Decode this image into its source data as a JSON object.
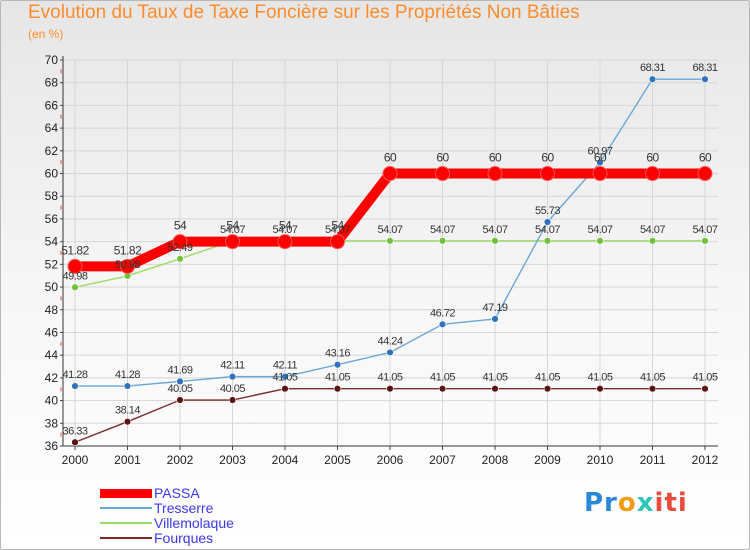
{
  "title": "Evolution du Taux de Taxe Foncière sur les Propriétés Non Bâties",
  "unit_label": "(en %)",
  "logo": {
    "text": "Proxiti",
    "parts": [
      "Pr",
      "o",
      "x",
      "iti"
    ]
  },
  "chart_data": {
    "type": "line",
    "title": "Evolution du Taux de Taxe Foncière sur les Propriétés Non Bâties",
    "ylabel": "(en %)",
    "xlabel": "",
    "ylim": [
      36,
      70
    ],
    "ytick_step": 2,
    "x": [
      "2000",
      "2001",
      "2002",
      "2003",
      "2004",
      "2005",
      "2006",
      "2007",
      "2008",
      "2009",
      "2010",
      "2011",
      "2012"
    ],
    "grid": true,
    "legend": "bottom-left",
    "series": [
      {
        "name": "PASSA",
        "color": "#ff0000",
        "emphasis": true,
        "values": [
          51.82,
          51.82,
          54,
          54,
          54,
          54,
          60,
          60,
          60,
          60,
          60,
          60,
          60
        ],
        "labels": [
          "51.82",
          "51.82",
          "54",
          "54",
          "54",
          "54",
          "60",
          "60",
          "60",
          "60",
          "60",
          "60",
          "60"
        ]
      },
      {
        "name": "Tresserre",
        "color": "#6aa6d8",
        "marker": "#2f73b8",
        "values": [
          41.28,
          41.28,
          41.69,
          42.11,
          42.11,
          43.16,
          44.24,
          46.72,
          47.19,
          55.73,
          60.97,
          68.31,
          68.31
        ],
        "labels": [
          "41.28",
          "41.28",
          "41.69",
          "42.11",
          "42.11",
          "43.16",
          "44.24",
          "46.72",
          "47.19",
          "55.73",
          "60.97",
          "68.31",
          "68.31"
        ]
      },
      {
        "name": "Villemolaque",
        "color": "#99dd66",
        "marker": "#6fc23a",
        "values": [
          49.98,
          50.98,
          52.49,
          54.07,
          54.07,
          54.07,
          54.07,
          54.07,
          54.07,
          54.07,
          54.07,
          54.07,
          54.07
        ],
        "labels": [
          "49.98",
          "50.98",
          "52.49",
          "54.07",
          "54.07",
          "54.07",
          "54.07",
          "54.07",
          "54.07",
          "54.07",
          "54.07",
          "54.07",
          "54.07"
        ]
      },
      {
        "name": "Fourques",
        "color": "#7a2a2a",
        "marker": "#5a1414",
        "values": [
          36.33,
          38.14,
          40.05,
          40.05,
          41.05,
          41.05,
          41.05,
          41.05,
          41.05,
          41.05,
          41.05,
          41.05,
          41.05
        ],
        "labels": [
          "36.33",
          "38.14",
          "40.05",
          "40.05",
          "41.05",
          "41.05",
          "41.05",
          "41.05",
          "41.05",
          "41.05",
          "41.05",
          "41.05",
          "41.05"
        ]
      }
    ]
  }
}
